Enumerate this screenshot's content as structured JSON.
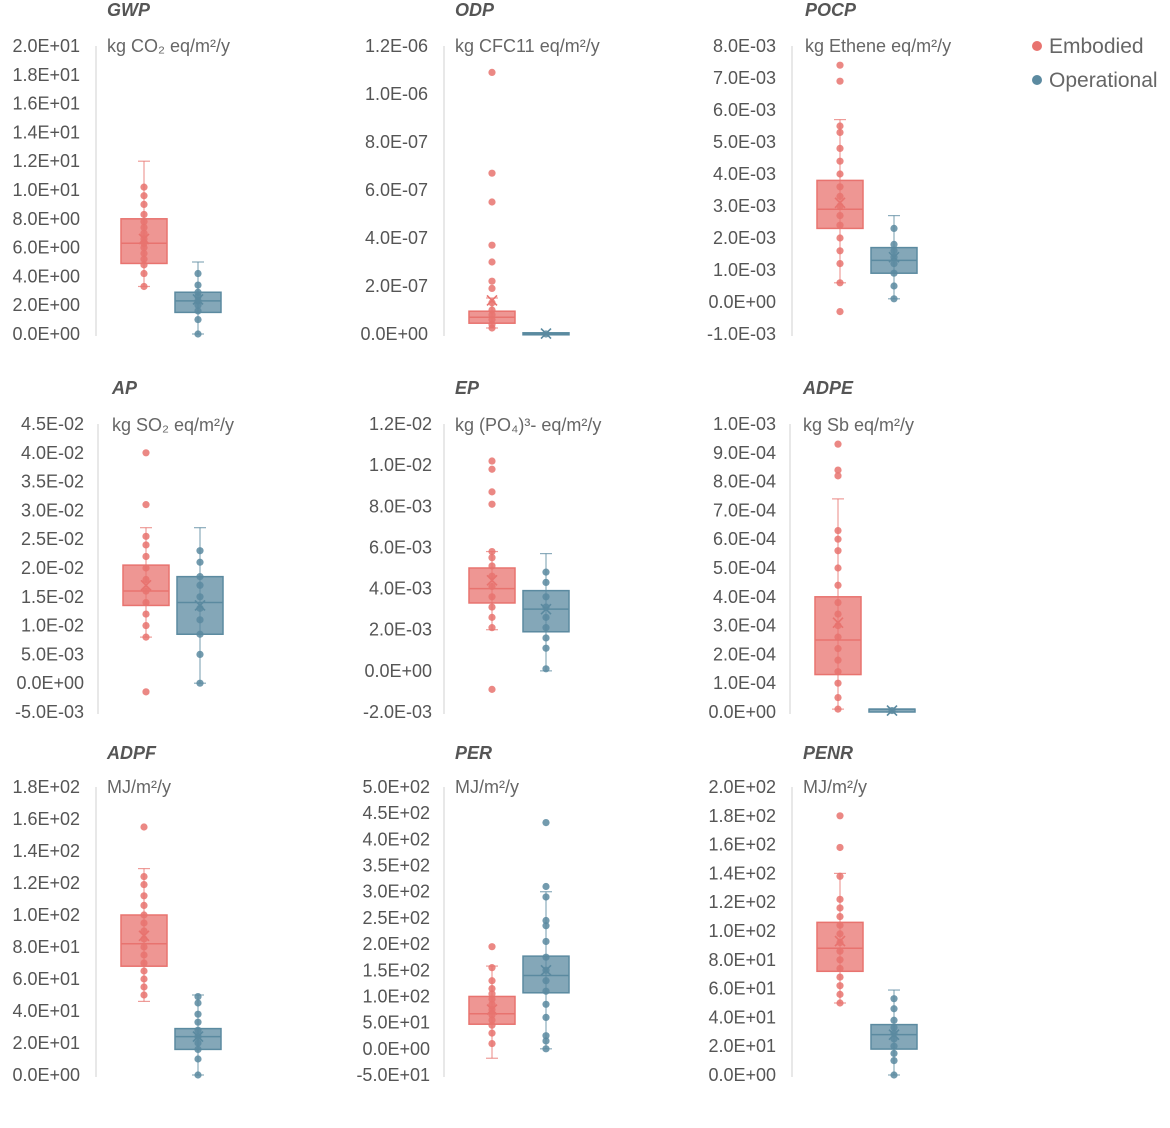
{
  "legend": {
    "embodied_label": "Embodied",
    "operational_label": "Operational",
    "embodied_color": "#e8736f",
    "operational_color": "#5b8aa0"
  },
  "chart_data": [
    {
      "type": "box",
      "title": "GWP",
      "ylabel": "kg CO₂ eq/m²/y",
      "ylim": [
        0,
        20
      ],
      "yticks": [
        "2.0E+01",
        "1.8E+01",
        "1.6E+01",
        "1.4E+01",
        "1.2E+01",
        "1.0E+01",
        "8.0E+00",
        "6.0E+00",
        "4.0E+00",
        "2.0E+00",
        "0.0E+00"
      ],
      "series": [
        {
          "name": "Embodied",
          "q1": 4.9,
          "median": 6.3,
          "q3": 8.0,
          "whisker_low": 3.3,
          "whisker_high": 12.0,
          "mean": 6.6,
          "points": [
            3.3,
            4.2,
            4.8,
            5.2,
            5.6,
            6.0,
            6.3,
            6.6,
            7.0,
            7.4,
            7.8,
            8.3,
            9.0,
            9.6,
            10.2
          ]
        },
        {
          "name": "Operational",
          "q1": 1.5,
          "median": 2.3,
          "q3": 2.9,
          "whisker_low": 0.0,
          "whisker_high": 5.0,
          "mean": 2.4,
          "points": [
            0.0,
            1.0,
            1.6,
            2.0,
            2.3,
            2.6,
            2.9,
            3.4,
            4.2
          ]
        }
      ]
    },
    {
      "type": "box",
      "title": "ODP",
      "ylabel": "kg CFC11 eq/m²/y",
      "ylim": [
        0,
        1.2e-06
      ],
      "yticks": [
        "1.2E-06",
        "1.0E-06",
        "8.0E-07",
        "6.0E-07",
        "4.0E-07",
        "2.0E-07",
        "0.0E+00"
      ],
      "series": [
        {
          "name": "Embodied",
          "q1": 4.5e-08,
          "median": 7e-08,
          "q3": 9.5e-08,
          "whisker_low": 2.5e-08,
          "whisker_high": 1.5e-07,
          "mean": 1.4e-07,
          "points": [
            2.5e-08,
            4e-08,
            6e-08,
            8e-08,
            1e-07,
            1.3e-07,
            1.9e-07,
            2.2e-07,
            3e-07,
            3.7e-07,
            5.5e-07,
            6.7e-07,
            1.09e-06
          ]
        },
        {
          "name": "Operational",
          "q1": 0.0,
          "median": 0.0,
          "q3": 5e-09,
          "whisker_low": 0.0,
          "whisker_high": 5e-09,
          "mean": 2e-09,
          "points": [
            0.0
          ]
        }
      ]
    },
    {
      "type": "box",
      "title": "POCP",
      "ylabel": "kg Ethene eq/m²/y",
      "ylim": [
        -0.001,
        0.008
      ],
      "yticks": [
        "8.0E-03",
        "7.0E-03",
        "6.0E-03",
        "5.0E-03",
        "4.0E-03",
        "3.0E-03",
        "2.0E-03",
        "1.0E-03",
        "0.0E+00",
        "-1.0E-03"
      ],
      "series": [
        {
          "name": "Embodied",
          "q1": 0.0023,
          "median": 0.0029,
          "q3": 0.0038,
          "whisker_low": 0.0006,
          "whisker_high": 0.0057,
          "mean": 0.0031,
          "points": [
            -0.0003,
            0.0006,
            0.0012,
            0.0016,
            0.002,
            0.0024,
            0.0027,
            0.003,
            0.0033,
            0.0036,
            0.004,
            0.0044,
            0.0048,
            0.0053,
            0.0055,
            0.0069,
            0.0074
          ]
        },
        {
          "name": "Operational",
          "q1": 0.0009,
          "median": 0.0013,
          "q3": 0.0017,
          "whisker_low": 0.0001,
          "whisker_high": 0.0027,
          "mean": 0.0014,
          "points": [
            0.0001,
            0.0005,
            0.0009,
            0.0012,
            0.0014,
            0.0016,
            0.0018,
            0.0023
          ]
        }
      ]
    },
    {
      "type": "box",
      "title": "AP",
      "ylabel": "kg SO₂ eq/m²/y",
      "ylim": [
        -0.005,
        0.045
      ],
      "yticks": [
        "4.5E-02",
        "4.0E-02",
        "3.5E-02",
        "3.0E-02",
        "2.5E-02",
        "2.0E-02",
        "1.5E-02",
        "1.0E-02",
        "5.0E-03",
        "0.0E+00",
        "-5.0E-03"
      ],
      "series": [
        {
          "name": "Embodied",
          "q1": 0.0135,
          "median": 0.016,
          "q3": 0.0205,
          "whisker_low": 0.008,
          "whisker_high": 0.027,
          "mean": 0.017,
          "points": [
            -0.0015,
            0.008,
            0.01,
            0.012,
            0.014,
            0.016,
            0.018,
            0.02,
            0.022,
            0.024,
            0.0255,
            0.031,
            0.04
          ]
        },
        {
          "name": "Operational",
          "q1": 0.0085,
          "median": 0.014,
          "q3": 0.0185,
          "whisker_low": 0.0,
          "whisker_high": 0.027,
          "mean": 0.0135,
          "points": [
            0.0,
            0.005,
            0.0085,
            0.011,
            0.013,
            0.015,
            0.017,
            0.0185,
            0.021,
            0.023
          ]
        }
      ]
    },
    {
      "type": "box",
      "title": "EP",
      "ylabel": "kg (PO₄)³- eq/m²/y",
      "ylim": [
        -0.002,
        0.012
      ],
      "yticks": [
        "1.2E-02",
        "1.0E-02",
        "8.0E-03",
        "6.0E-03",
        "4.0E-03",
        "2.0E-03",
        "0.0E+00",
        "-2.0E-03"
      ],
      "series": [
        {
          "name": "Embodied",
          "q1": 0.0033,
          "median": 0.004,
          "q3": 0.005,
          "whisker_low": 0.002,
          "whisker_high": 0.0058,
          "mean": 0.0044,
          "points": [
            -0.0009,
            0.0021,
            0.0026,
            0.0031,
            0.0036,
            0.0041,
            0.0046,
            0.0051,
            0.0055,
            0.0058,
            0.0081,
            0.0087,
            0.0098,
            0.0102
          ]
        },
        {
          "name": "Operational",
          "q1": 0.0019,
          "median": 0.003,
          "q3": 0.0039,
          "whisker_low": 0.0,
          "whisker_high": 0.0057,
          "mean": 0.003,
          "points": [
            0.0001,
            0.0011,
            0.0016,
            0.0021,
            0.0026,
            0.0031,
            0.0036,
            0.0043,
            0.0048
          ]
        }
      ]
    },
    {
      "type": "box",
      "title": "ADPE",
      "ylabel": "kg Sb eq/m²/y",
      "ylim": [
        0,
        0.001
      ],
      "yticks": [
        "1.0E-03",
        "9.0E-04",
        "8.0E-04",
        "7.0E-04",
        "6.0E-04",
        "5.0E-04",
        "4.0E-04",
        "3.0E-04",
        "2.0E-04",
        "1.0E-04",
        "0.0E+00"
      ],
      "series": [
        {
          "name": "Embodied",
          "q1": 0.00013,
          "median": 0.00025,
          "q3": 0.0004,
          "whisker_low": 1e-05,
          "whisker_high": 0.00074,
          "mean": 0.00031,
          "points": [
            1e-05,
            5e-05,
            0.0001,
            0.00014,
            0.00018,
            0.00022,
            0.00026,
            0.0003,
            0.00034,
            0.00038,
            0.00044,
            0.0005,
            0.00056,
            0.0006,
            0.00063,
            0.00082,
            0.00084,
            0.00093
          ]
        },
        {
          "name": "Operational",
          "q1": 0.0,
          "median": 1e-05,
          "q3": 1e-05,
          "whisker_low": 0.0,
          "whisker_high": 1e-05,
          "mean": 5e-06,
          "points": [
            5e-06
          ]
        }
      ]
    },
    {
      "type": "box",
      "title": "ADPF",
      "ylabel": "MJ/m²/y",
      "ylim": [
        0,
        180
      ],
      "yticks": [
        "1.8E+02",
        "1.6E+02",
        "1.4E+02",
        "1.2E+02",
        "1.0E+02",
        "8.0E+01",
        "6.0E+01",
        "4.0E+01",
        "2.0E+01",
        "0.0E+00"
      ],
      "series": [
        {
          "name": "Embodied",
          "q1": 68,
          "median": 82,
          "q3": 100,
          "whisker_low": 46,
          "whisker_high": 129,
          "mean": 87,
          "points": [
            50,
            55,
            60,
            65,
            70,
            75,
            80,
            85,
            90,
            95,
            100,
            106,
            112,
            119,
            124,
            155
          ]
        },
        {
          "name": "Operational",
          "q1": 16,
          "median": 24,
          "q3": 29,
          "whisker_low": 0,
          "whisker_high": 50,
          "mean": 24,
          "points": [
            0,
            10,
            16,
            20,
            24,
            28,
            33,
            38,
            45,
            49
          ]
        }
      ]
    },
    {
      "type": "box",
      "title": "PER",
      "ylabel": "MJ/m²/y",
      "ylim": [
        -50,
        500
      ],
      "yticks": [
        "5.0E+02",
        "4.5E+02",
        "4.0E+02",
        "3.5E+02",
        "3.0E+02",
        "2.5E+02",
        "2.0E+02",
        "1.5E+02",
        "1.0E+02",
        "5.0E+01",
        "0.0E+00",
        "-5.0E+01"
      ],
      "series": [
        {
          "name": "Embodied",
          "q1": 47,
          "median": 67,
          "q3": 100,
          "whisker_low": -18,
          "whisker_high": 158,
          "mean": 75,
          "points": [
            10,
            30,
            45,
            55,
            65,
            75,
            85,
            95,
            105,
            115,
            130,
            155,
            195
          ]
        },
        {
          "name": "Operational",
          "q1": 107,
          "median": 140,
          "q3": 177,
          "whisker_low": 0,
          "whisker_high": 300,
          "mean": 150,
          "points": [
            0,
            15,
            25,
            60,
            85,
            110,
            130,
            150,
            175,
            205,
            235,
            245,
            290,
            310,
            432
          ]
        }
      ]
    },
    {
      "type": "box",
      "title": "PENR",
      "ylabel": "MJ/m²/y",
      "ylim": [
        0,
        200
      ],
      "yticks": [
        "2.0E+02",
        "1.8E+02",
        "1.6E+02",
        "1.4E+02",
        "1.2E+02",
        "1.0E+02",
        "8.0E+01",
        "6.0E+01",
        "4.0E+01",
        "2.0E+01",
        "0.0E+00"
      ],
      "series": [
        {
          "name": "Embodied",
          "q1": 72,
          "median": 88,
          "q3": 106,
          "whisker_low": 50,
          "whisker_high": 140,
          "mean": 93,
          "points": [
            50,
            56,
            62,
            68,
            74,
            80,
            86,
            92,
            98,
            104,
            110,
            116,
            122,
            138,
            158,
            180
          ]
        },
        {
          "name": "Operational",
          "q1": 18,
          "median": 28,
          "q3": 35,
          "whisker_low": 0,
          "whisker_high": 59,
          "mean": 28,
          "points": [
            0,
            10,
            15,
            20,
            25,
            29,
            33,
            38,
            46,
            53
          ]
        }
      ]
    }
  ]
}
